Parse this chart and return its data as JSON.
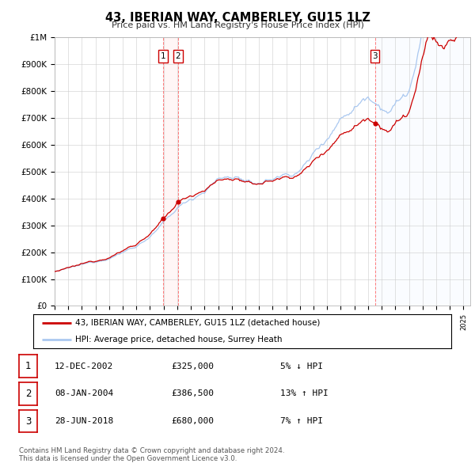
{
  "title": "43, IBERIAN WAY, CAMBERLEY, GU15 1LZ",
  "subtitle": "Price paid vs. HM Land Registry's House Price Index (HPI)",
  "y_ticks": [
    0,
    100000,
    200000,
    300000,
    400000,
    500000,
    600000,
    700000,
    800000,
    900000,
    1000000
  ],
  "y_tick_labels": [
    "£0",
    "£100K",
    "£200K",
    "£300K",
    "£400K",
    "£500K",
    "£600K",
    "£700K",
    "£800K",
    "£900K",
    "£1M"
  ],
  "hpi_color": "#aac8f0",
  "price_color": "#cc0000",
  "vline_color": "#ff6666",
  "sale_points": [
    {
      "year": 2002.95,
      "price": 325000,
      "label": "1"
    },
    {
      "year": 2004.05,
      "price": 386500,
      "label": "2"
    },
    {
      "year": 2018.5,
      "price": 680000,
      "label": "3"
    }
  ],
  "vline_years": [
    2002.95,
    2004.05,
    2018.5
  ],
  "legend_line1": "43, IBERIAN WAY, CAMBERLEY, GU15 1LZ (detached house)",
  "legend_line2": "HPI: Average price, detached house, Surrey Heath",
  "table_rows": [
    {
      "num": "1",
      "date": "12-DEC-2002",
      "price": "£325,000",
      "change": "5% ↓ HPI"
    },
    {
      "num": "2",
      "date": "08-JAN-2004",
      "price": "£386,500",
      "change": "13% ↑ HPI"
    },
    {
      "num": "3",
      "date": "28-JUN-2018",
      "price": "£680,000",
      "change": "7% ↑ HPI"
    }
  ],
  "footnote1": "Contains HM Land Registry data © Crown copyright and database right 2024.",
  "footnote2": "This data is licensed under the Open Government Licence v3.0.",
  "background_color": "#ffffff",
  "grid_color": "#cccccc"
}
